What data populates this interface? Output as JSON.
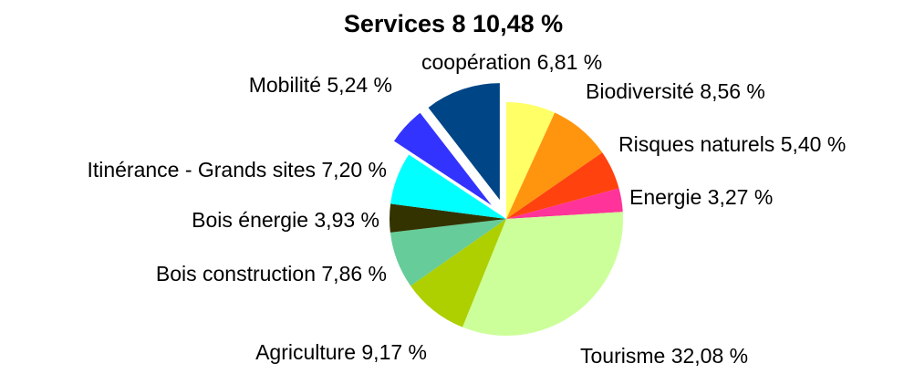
{
  "chart_data": {
    "type": "pie",
    "categories": [
      "coopération",
      "Biodiversité",
      "Risques naturels",
      "Energie",
      "Tourisme",
      "Agriculture",
      "Bois construction",
      "Bois énergie",
      "Itinérance - Grands sites",
      "Mobilité",
      "Services 8"
    ],
    "values": [
      6.81,
      8.56,
      5.4,
      3.27,
      32.08,
      9.17,
      7.86,
      3.93,
      7.2,
      5.24,
      10.48
    ],
    "value_labels": [
      "6,81 %",
      "8,56 %",
      "5,40 %",
      "3,27 %",
      "32,08 %",
      "9,17 %",
      "7,86 %",
      "3,93 %",
      "7,20 %",
      "5,24 %",
      "10,48 %"
    ],
    "colors": [
      "#ffff66",
      "#ff950e",
      "#ff420e",
      "#ff3399",
      "#ccff99",
      "#aecf00",
      "#66cc99",
      "#333300",
      "#00ffff",
      "#3333ff",
      "#004586"
    ],
    "explode": [
      0,
      0,
      0,
      0,
      0,
      0,
      0,
      0,
      0,
      1,
      1
    ]
  }
}
